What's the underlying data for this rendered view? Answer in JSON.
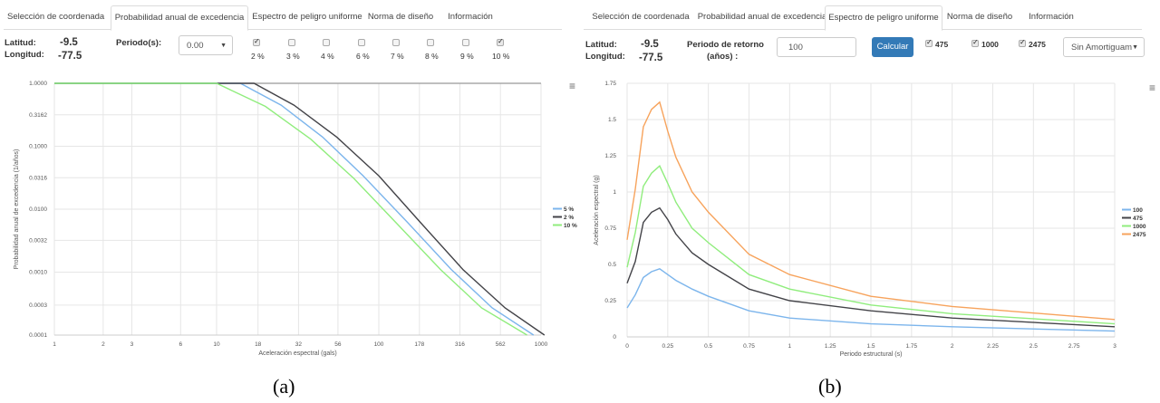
{
  "panel_a": {
    "tabs": [
      "Selección de coordenada",
      "Probabilidad anual de excedencia",
      "Espectro de peligro uniforme",
      "Norma de diseño",
      "Información"
    ],
    "active_tab": 1,
    "latitud_label": "Latitud:",
    "longitud_label": "Longitud:",
    "latitud_value": "-9.5",
    "longitud_value": "-77.5",
    "periodo_label": "Periodo(s):",
    "periodo_value": "0.00",
    "checks": [
      {
        "label": "2 %",
        "checked": true
      },
      {
        "label": "3 %",
        "checked": false
      },
      {
        "label": "4 %",
        "checked": false
      },
      {
        "label": "6 %",
        "checked": false
      },
      {
        "label": "7 %",
        "checked": false
      },
      {
        "label": "8 %",
        "checked": false
      },
      {
        "label": "9 %",
        "checked": false
      },
      {
        "label": "10 %",
        "checked": true
      }
    ],
    "caption": "(a)"
  },
  "panel_b": {
    "tabs": [
      "Selección de coordenada",
      "Probabilidad anual de excedencia",
      "Espectro de peligro uniforme",
      "Norma de diseño",
      "Información"
    ],
    "active_tab": 2,
    "latitud_label": "Latitud:",
    "longitud_label": "Longitud:",
    "latitud_value": "-9.5",
    "longitud_value": "-77.5",
    "periodo_label_1": "Periodo de retorno",
    "periodo_label_2": "(años) :",
    "periodo_input": "100",
    "calcular_label": "Calcular",
    "checks": [
      {
        "label": "475",
        "checked": true
      },
      {
        "label": "1000",
        "checked": true
      },
      {
        "label": "2475",
        "checked": true
      }
    ],
    "amortiguamiento": "Sin Amortiguam",
    "caption": "(b)"
  },
  "menu_icon": "hamburger-menu-icon",
  "chart_data": [
    {
      "type": "line",
      "title": "",
      "xlabel": "Aceleración espectral (gals)",
      "ylabel": "Probabilidad anual de excedencia (1/años)",
      "x_scale": "log",
      "y_scale": "log",
      "xlim": [
        1,
        1000
      ],
      "ylim": [
        0.0001,
        1
      ],
      "x_ticks": [
        "1",
        "2",
        "3",
        "6",
        "10",
        "18",
        "32",
        "56",
        "100",
        "178",
        "316",
        "562",
        "1000"
      ],
      "y_ticks": [
        "1.0000",
        "0.3162",
        "0.1000",
        "0.0316",
        "0.0100",
        "0.0032",
        "0.0010",
        "0.0003",
        "0.0001"
      ],
      "legend_position": "right",
      "series": [
        {
          "name": "5 %",
          "color": "#7cb5ec",
          "x": [
            1,
            14,
            25,
            45,
            80,
            150,
            280,
            500,
            900
          ],
          "y": [
            1,
            1,
            0.45,
            0.14,
            0.034,
            0.0062,
            0.0011,
            0.00027,
            0.0001
          ]
        },
        {
          "name": "2 %",
          "color": "#434348",
          "x": [
            1,
            17,
            30,
            55,
            100,
            180,
            330,
            600,
            1050
          ],
          "y": [
            1,
            1,
            0.45,
            0.14,
            0.034,
            0.0062,
            0.0011,
            0.00027,
            0.0001
          ]
        },
        {
          "name": "10 %",
          "color": "#90ed7d",
          "x": [
            1,
            10,
            20,
            38,
            70,
            130,
            240,
            430,
            820
          ],
          "y": [
            1,
            1,
            0.43,
            0.13,
            0.031,
            0.0058,
            0.0011,
            0.00027,
            0.0001
          ]
        }
      ]
    },
    {
      "type": "line",
      "title": "",
      "xlabel": "Periodo estructural (s)",
      "ylabel": "Aceleración espectral (g)",
      "xlim": [
        0,
        3
      ],
      "ylim": [
        0,
        1.75
      ],
      "x_ticks": [
        "0",
        "0.25",
        "0.5",
        "0.75",
        "1",
        "1.25",
        "1.5",
        "1.75",
        "2",
        "2.25",
        "2.5",
        "2.75",
        "3"
      ],
      "y_ticks": [
        "0",
        "0.25",
        "0.5",
        "0.75",
        "1",
        "1.25",
        "1.5",
        "1.75"
      ],
      "legend_position": "right",
      "x": [
        0,
        0.05,
        0.1,
        0.15,
        0.2,
        0.25,
        0.3,
        0.4,
        0.5,
        0.75,
        1,
        1.5,
        2,
        3
      ],
      "series": [
        {
          "name": "100",
          "color": "#7cb5ec",
          "values": [
            0.2,
            0.29,
            0.41,
            0.45,
            0.47,
            0.43,
            0.39,
            0.33,
            0.28,
            0.18,
            0.13,
            0.09,
            0.07,
            0.04
          ]
        },
        {
          "name": "475",
          "color": "#434348",
          "values": [
            0.37,
            0.52,
            0.79,
            0.86,
            0.89,
            0.81,
            0.71,
            0.58,
            0.5,
            0.33,
            0.25,
            0.18,
            0.13,
            0.07
          ]
        },
        {
          "name": "1000",
          "color": "#90ed7d",
          "values": [
            0.48,
            0.72,
            1.04,
            1.13,
            1.18,
            1.06,
            0.93,
            0.75,
            0.65,
            0.43,
            0.33,
            0.22,
            0.16,
            0.09
          ]
        },
        {
          "name": "2475",
          "color": "#f7a35c",
          "values": [
            0.67,
            1.02,
            1.45,
            1.57,
            1.62,
            1.42,
            1.24,
            1.0,
            0.86,
            0.57,
            0.43,
            0.28,
            0.21,
            0.12
          ]
        }
      ]
    }
  ]
}
